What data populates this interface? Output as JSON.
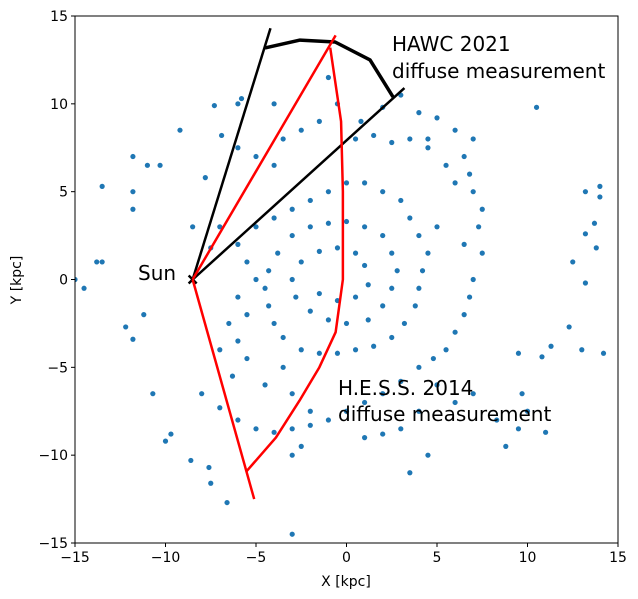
{
  "chart_data": {
    "type": "scatter",
    "x_label": "X [kpc]",
    "y_label": "Y [kpc]",
    "xlim": [
      -15,
      15
    ],
    "ylim": [
      -15,
      15
    ],
    "xticks": [
      {
        "value": -15,
        "label": "−15"
      },
      {
        "value": -10,
        "label": "−10"
      },
      {
        "value": -5,
        "label": "−5"
      },
      0,
      5,
      10,
      15
    ],
    "yticks": [
      {
        "value": -15,
        "label": "−15"
      },
      {
        "value": -10,
        "label": "−10"
      },
      {
        "value": -5,
        "label": "−5"
      },
      0,
      5,
      10,
      15
    ],
    "grid": false,
    "series": [
      {
        "color": "#1f77b4",
        "marker": "o",
        "x": [
          -14.5,
          -15,
          -13.8,
          -13.5,
          -13.5,
          -11.8,
          -11.8,
          -11.8,
          -11,
          -10.3,
          -9.2,
          -12.2,
          -11.8,
          -11.2,
          -10.7,
          -10,
          -9.7,
          -8.6,
          -7.6,
          -7.5,
          -6.6,
          -3,
          10.5,
          14,
          14,
          13.2,
          13.7,
          13.2,
          13.8,
          13.2,
          12.5,
          14.2,
          13,
          12.3,
          11.3,
          10.8,
          9.5,
          8.3,
          8.8,
          10,
          9.7,
          11,
          9.5,
          4,
          5,
          6,
          7,
          6.5,
          6.8,
          6,
          7,
          5.5,
          4.5,
          3.5,
          2.5,
          1.5,
          0.5,
          -1.5,
          -2.5,
          -3.5,
          -4,
          -5,
          -6,
          -6,
          -5.8,
          -7.3,
          -6.9,
          -4,
          -1,
          -0.5,
          0.8,
          2,
          3,
          4.5,
          7.5,
          7.3,
          6.5,
          7.5,
          7,
          6.8,
          6.5,
          6,
          5.5,
          4.8,
          4,
          3,
          2,
          1,
          0,
          -1,
          -2,
          -3,
          -4,
          -5,
          -6,
          -7,
          -8,
          -6.3,
          -7,
          -6,
          -6.5,
          -5.5,
          -6,
          -5,
          -5.5,
          -6,
          -5,
          -4,
          -3,
          -2,
          -1,
          0,
          1,
          2,
          3,
          3.5,
          4,
          4.5,
          4.2,
          4,
          3.8,
          3.2,
          2.5,
          1.5,
          0.5,
          -0.5,
          -1.5,
          -2.5,
          -3.5,
          -4,
          -4.3,
          -4.5,
          -4.3,
          -3.8,
          -3,
          -2,
          -1,
          0,
          1,
          2,
          2.5,
          2.8,
          2.5,
          2,
          1.2,
          0,
          -1,
          -2,
          -2.8,
          -3,
          -2.5,
          -1.5,
          -0.5,
          0.5,
          1,
          1.2,
          0.5,
          -0.5,
          -1.5,
          -3.5,
          -4.5,
          -5.5,
          -3,
          -2,
          5,
          6,
          7,
          4,
          3,
          2,
          1,
          4.5,
          3.5,
          -3,
          -2.5,
          -7.8,
          -7,
          -7.5,
          -8.5,
          5
        ],
        "values": [
          -0.5,
          0,
          1,
          1,
          5.3,
          7,
          5,
          4,
          6.5,
          6.5,
          8.5,
          -2.7,
          -3.4,
          -2,
          -6.5,
          -9.2,
          -8.8,
          -10.3,
          -10.7,
          -11.6,
          -12.7,
          -14.5,
          9.8,
          5.3,
          4.7,
          5,
          3.2,
          2.6,
          1.8,
          -0.2,
          1,
          -4.2,
          -4,
          -2.7,
          -3.8,
          -4.4,
          -4.2,
          -8,
          -9.5,
          -7.5,
          -6.5,
          -8.7,
          -8.5,
          9.5,
          9.2,
          8.5,
          8,
          7,
          6,
          5.5,
          5,
          6.5,
          7.5,
          8,
          7.8,
          8.2,
          8,
          9,
          8.5,
          8,
          6.5,
          7,
          7.5,
          10,
          10.3,
          9.9,
          8.2,
          10,
          11.5,
          10,
          9,
          9.8,
          10.5,
          8,
          4,
          3,
          2,
          1.5,
          0,
          -1,
          -2,
          -3,
          -4,
          -4.5,
          -5,
          -5.8,
          -6.5,
          -7,
          -7.5,
          -8,
          -8.3,
          -8.5,
          -8.7,
          -8.5,
          -8,
          -7.3,
          -6.5,
          -5.5,
          -4,
          -3.5,
          -2.5,
          -2,
          -1,
          0,
          1,
          2,
          3,
          3.5,
          4,
          4.5,
          5,
          5.5,
          5.5,
          5,
          4.5,
          3.5,
          2.5,
          1.5,
          0.5,
          -0.5,
          -1.5,
          -2.5,
          -3.3,
          -3.8,
          -4,
          -4.2,
          -4.2,
          -4,
          -3.3,
          -2.5,
          -1.5,
          -0.5,
          0.5,
          1.5,
          2.5,
          3,
          3.2,
          3.3,
          3,
          2.5,
          1.5,
          0.5,
          -0.5,
          -1.5,
          -2.3,
          -2.5,
          -2.3,
          -1.8,
          -1,
          0,
          1,
          1.6,
          1.8,
          1.5,
          0.8,
          -0.3,
          -1,
          -1.2,
          -0.8,
          -5,
          -6,
          -4.5,
          -6.5,
          -7.5,
          -6,
          -7,
          -6.5,
          -7.5,
          -8.5,
          -8.8,
          -9,
          -10,
          -11,
          -10,
          -9.5,
          5.8,
          3,
          1.8,
          3,
          3
        ]
      },
      {
        "color": "#000000",
        "marker": "x",
        "x": [
          -8.5
        ],
        "values": [
          0
        ]
      }
    ],
    "lines": [
      {
        "color": "#000000",
        "width": 2.5,
        "x": [
          -8.5,
          -4.2
        ],
        "values": [
          0,
          14.3
        ]
      },
      {
        "color": "#000000",
        "width": 2.5,
        "x": [
          -8.5,
          3.2
        ],
        "values": [
          0,
          10.9
        ]
      },
      {
        "color": "#000000",
        "width": 3.5,
        "x": [
          -4.5,
          -2.57,
          -0.63,
          1.3,
          2.57
        ],
        "values": [
          13.18,
          13.63,
          13.52,
          12.5,
          10.39
        ]
      },
      {
        "color": "#ff0000",
        "width": 2.5,
        "x": [
          -8.5,
          -0.6
        ],
        "values": [
          0,
          13.9
        ]
      },
      {
        "color": "#ff0000",
        "width": 2.5,
        "x": [
          -8.5,
          -5.1
        ],
        "values": [
          0,
          -12.5
        ]
      },
      {
        "color": "#ff0000",
        "width": 2.5,
        "x": [
          -0.9,
          -0.3,
          -0.2,
          -0.2,
          -0.6,
          -1.5,
          -2.6,
          -3.9,
          -5.55
        ],
        "values": [
          13.2,
          9,
          5,
          0,
          -3,
          -5,
          -6.9,
          -9,
          -10.95
        ]
      }
    ],
    "annotations": [
      {
        "lines": [
          "HAWC 2021",
          "diffuse measurement"
        ],
        "color": "#000000"
      },
      {
        "lines": [
          "H.E.S.S. 2014",
          "diffuse measurement"
        ],
        "color": "#ff0000"
      },
      {
        "lines": [
          "Sun"
        ],
        "color": "#000000"
      }
    ]
  }
}
